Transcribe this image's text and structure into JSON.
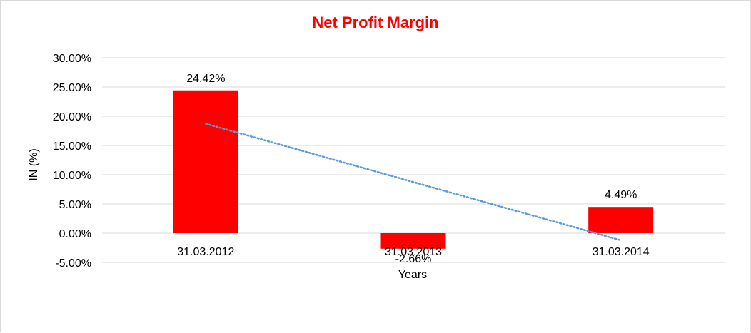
{
  "chart_data": {
    "type": "bar",
    "title": "Net Profit Margin",
    "xlabel": "Years",
    "ylabel": "IN (%)",
    "categories": [
      "31.03.2012",
      "31.03.2013",
      "31.03.2014"
    ],
    "values": [
      24.42,
      -2.66,
      4.49
    ],
    "data_labels": [
      "24.42%",
      "-2.66%",
      "4.49%"
    ],
    "yticks": [
      "30.00%",
      "25.00%",
      "20.00%",
      "15.00%",
      "10.00%",
      "5.00%",
      "0.00%",
      "-5.00%"
    ],
    "ylim": [
      -5,
      30
    ],
    "ytick_step": 5,
    "grid": true,
    "trendline": {
      "type": "linear",
      "style": "dotted"
    },
    "colors": {
      "bar": "#ff0000",
      "title": "#ff0000",
      "grid": "#d9d9d9",
      "trendline": "#5b9bd5"
    }
  }
}
